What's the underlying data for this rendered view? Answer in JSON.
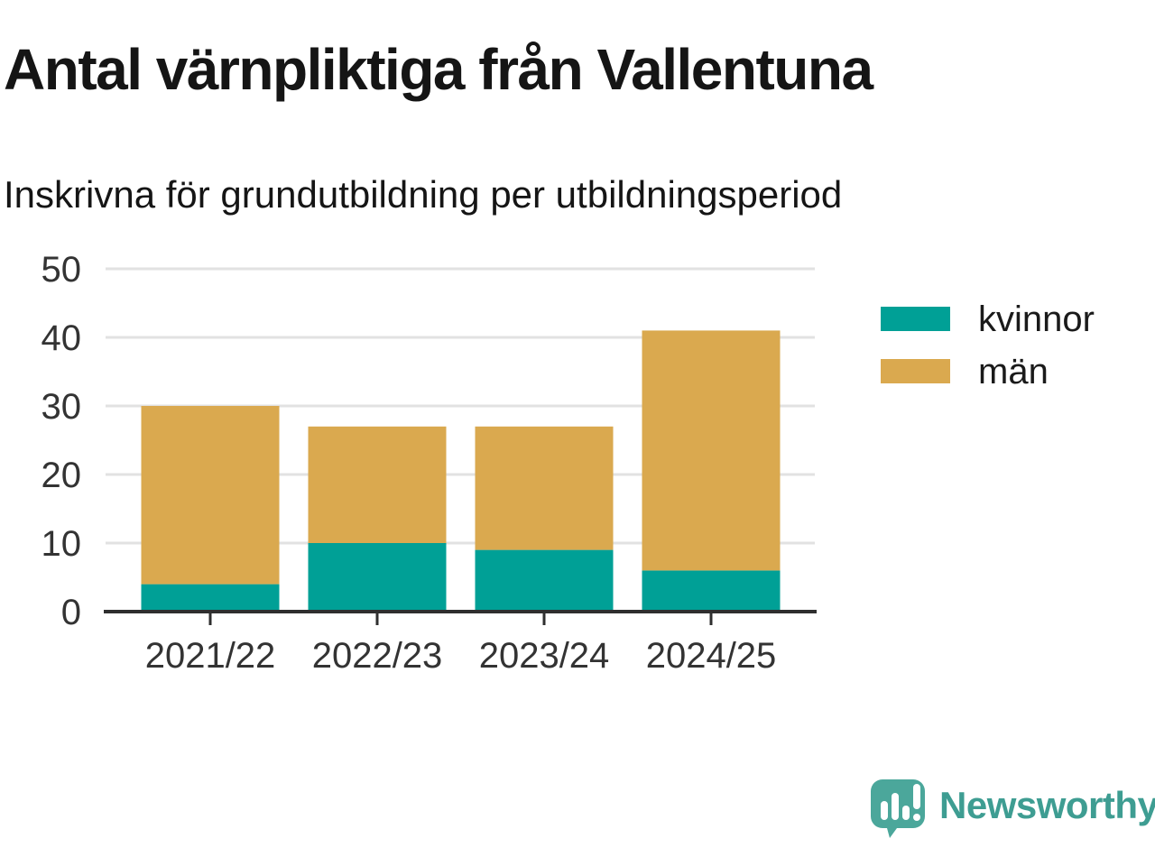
{
  "page": {
    "title": "Antal värnpliktiga från Vallentuna",
    "subtitle": "Inskrivna för grundutbildning per utbildningsperiod"
  },
  "colors": {
    "kvinnor": "#00A096",
    "man": "#DAA94F",
    "axis_line": "#2F2F2F",
    "gridline": "#E2E2E2",
    "tick_text": "#333333",
    "title_text": "#151515",
    "logo_bubble": "#4BA79B",
    "logo_text": "#3E9D92"
  },
  "chart_data": {
    "type": "bar",
    "stacked": true,
    "title": "Antal värnpliktiga från Vallentuna",
    "subtitle": "Inskrivna för grundutbildning per utbildningsperiod",
    "categories": [
      "2021/22",
      "2022/23",
      "2023/24",
      "2024/25"
    ],
    "series": [
      {
        "name": "kvinnor",
        "color_key": "kvinnor",
        "values": [
          4,
          10,
          9,
          6
        ]
      },
      {
        "name": "män",
        "color_key": "man",
        "values": [
          26,
          17,
          18,
          35
        ]
      }
    ],
    "totals": [
      30,
      27,
      27,
      41
    ],
    "xlabel": "",
    "ylabel": "",
    "ylim": [
      0,
      50
    ],
    "yticks": [
      0,
      10,
      20,
      30,
      40,
      50
    ],
    "grid": true,
    "legend_position": "right"
  },
  "footer": {
    "brand": "Newsworthy"
  }
}
